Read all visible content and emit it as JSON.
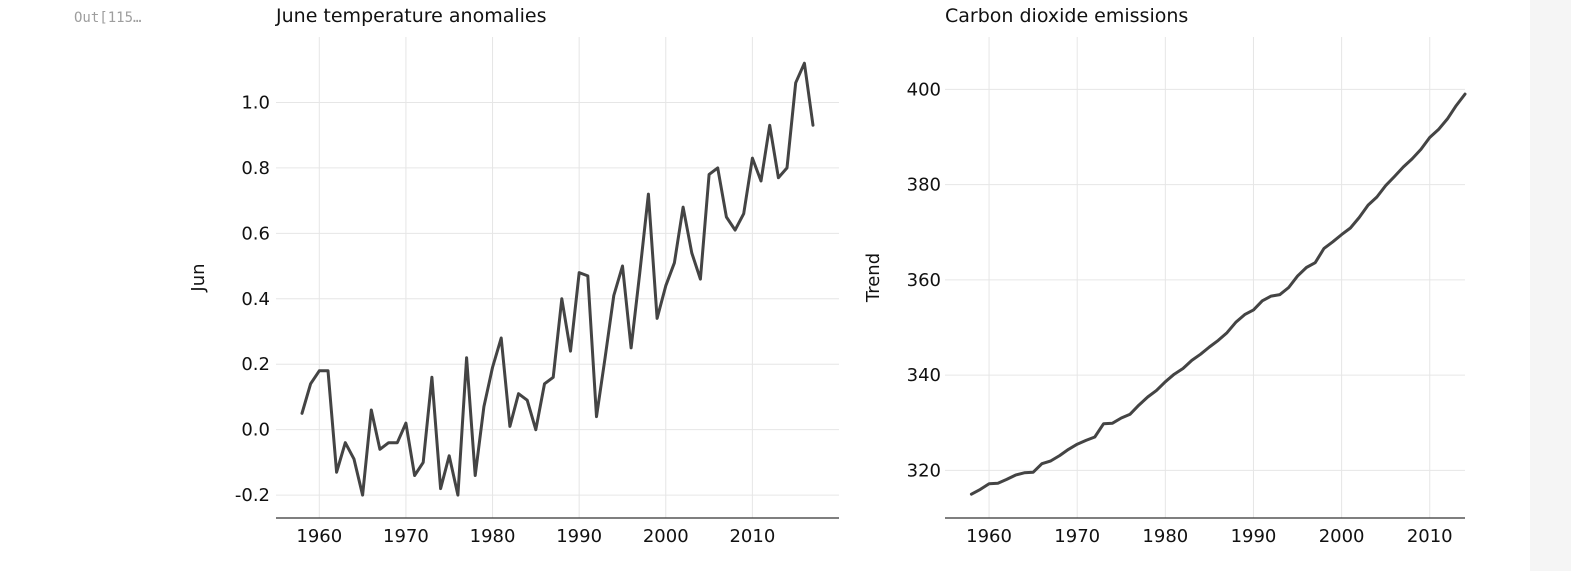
{
  "cell": {
    "out_prompt": "Out[115…"
  },
  "chart_data": [
    {
      "type": "line",
      "title": "June temperature anomalies",
      "xlabel": "",
      "ylabel": "Jun",
      "xlim": [
        1955,
        2020
      ],
      "ylim": [
        -0.27,
        1.2
      ],
      "xticks": [
        1960,
        1970,
        1980,
        1990,
        2000,
        2010
      ],
      "yticks": [
        -0.2,
        0.0,
        0.2,
        0.4,
        0.6,
        0.8,
        1.0
      ],
      "ytick_labels": [
        "-0.2",
        "0.0",
        "0.2",
        "0.4",
        "0.6",
        "0.8",
        "1.0"
      ],
      "grid": true,
      "series": [
        {
          "x": [
            1958,
            1959,
            1960,
            1961,
            1962,
            1963,
            1964,
            1965,
            1966,
            1967,
            1968,
            1969,
            1970,
            1971,
            1972,
            1973,
            1974,
            1975,
            1976,
            1977,
            1978,
            1979,
            1980,
            1981,
            1982,
            1983,
            1984,
            1985,
            1986,
            1987,
            1988,
            1989,
            1990,
            1991,
            1992,
            1993,
            1994,
            1995,
            1996,
            1997,
            1998,
            1999,
            2000,
            2001,
            2002,
            2003,
            2004,
            2005,
            2006,
            2007,
            2008,
            2009,
            2010,
            2011,
            2012,
            2013,
            2014,
            2015,
            2016,
            2017
          ],
          "values": [
            0.05,
            0.14,
            0.18,
            0.18,
            -0.13,
            -0.04,
            -0.09,
            -0.2,
            0.06,
            -0.06,
            -0.04,
            -0.04,
            0.02,
            -0.14,
            -0.1,
            0.16,
            -0.18,
            -0.08,
            -0.2,
            0.22,
            -0.14,
            0.07,
            0.19,
            0.28,
            0.01,
            0.11,
            0.09,
            0.0,
            0.14,
            0.16,
            0.4,
            0.24,
            0.48,
            0.47,
            0.04,
            0.22,
            0.41,
            0.5,
            0.25,
            0.48,
            0.72,
            0.34,
            0.44,
            0.51,
            0.68,
            0.54,
            0.46,
            0.78,
            0.8,
            0.65,
            0.61,
            0.66,
            0.83,
            0.76,
            0.93,
            0.77,
            0.8,
            1.06,
            1.12,
            0.93
          ]
        }
      ]
    },
    {
      "type": "line",
      "title": "Carbon dioxide emissions",
      "xlabel": "",
      "ylabel": "Trend",
      "xlim": [
        1955,
        2014
      ],
      "ylim": [
        310,
        411
      ],
      "xticks": [
        1960,
        1970,
        1980,
        1990,
        2000,
        2010
      ],
      "yticks": [
        320,
        340,
        360,
        380,
        400
      ],
      "ytick_labels": [
        "320",
        "340",
        "360",
        "380",
        "400"
      ],
      "grid": true,
      "series": [
        {
          "x": [
            1958,
            1959,
            1960,
            1961,
            1962,
            1963,
            1964,
            1965,
            1966,
            1967,
            1968,
            1969,
            1970,
            1971,
            1972,
            1973,
            1974,
            1975,
            1976,
            1977,
            1978,
            1979,
            1980,
            1981,
            1982,
            1983,
            1984,
            1985,
            1986,
            1987,
            1988,
            1989,
            1990,
            1991,
            1992,
            1993,
            1994,
            1995,
            1996,
            1997,
            1998,
            1999,
            2000,
            2001,
            2002,
            2003,
            2004,
            2005,
            2006,
            2007,
            2008,
            2009,
            2010,
            2011,
            2012,
            2013,
            2014
          ],
          "values": [
            315.0,
            316.0,
            317.2,
            317.3,
            318.1,
            319.0,
            319.5,
            319.6,
            321.4,
            322.0,
            323.1,
            324.4,
            325.5,
            326.3,
            327.0,
            329.8,
            329.9,
            331.0,
            331.8,
            333.7,
            335.4,
            336.8,
            338.6,
            340.2,
            341.4,
            343.1,
            344.4,
            345.9,
            347.3,
            348.9,
            351.1,
            352.7,
            353.7,
            355.6,
            356.6,
            356.9,
            358.4,
            360.8,
            362.6,
            363.6,
            366.6,
            368.0,
            369.5,
            370.9,
            373.1,
            375.7,
            377.4,
            379.8,
            381.7,
            383.7,
            385.4,
            387.4,
            389.9,
            391.6,
            393.8,
            396.6,
            399.0
          ]
        }
      ]
    }
  ]
}
